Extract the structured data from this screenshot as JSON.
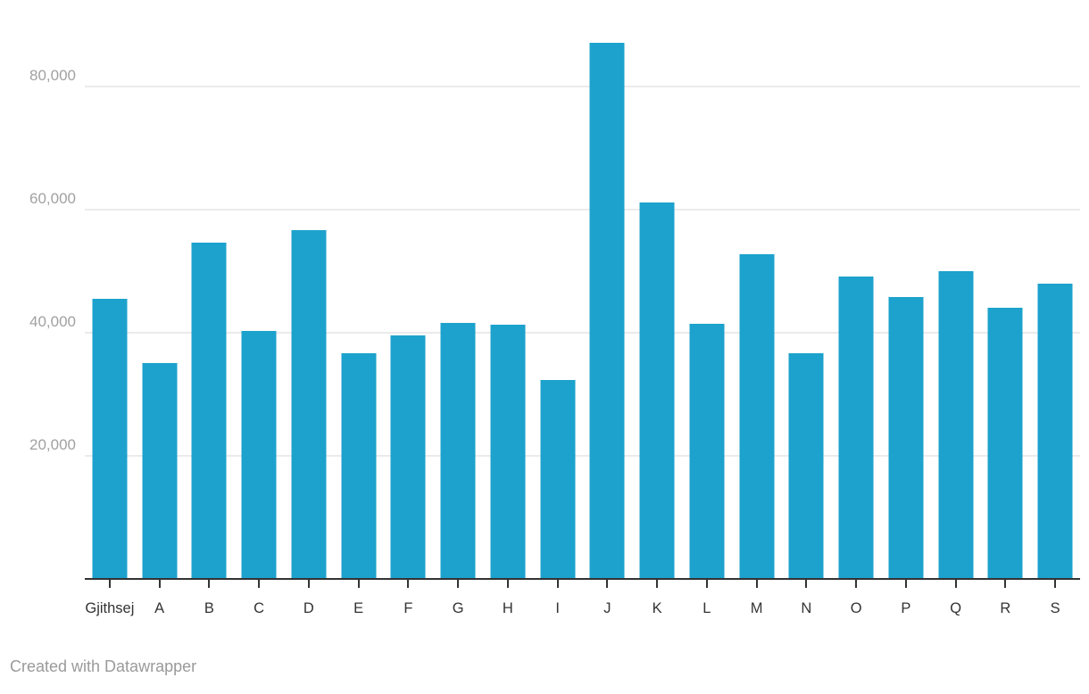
{
  "chart_data": {
    "type": "bar",
    "categories": [
      "Gjithsej",
      "A",
      "B",
      "C",
      "D",
      "E",
      "F",
      "G",
      "H",
      "I",
      "J",
      "K",
      "L",
      "M",
      "N",
      "O",
      "P",
      "Q",
      "R",
      "S"
    ],
    "values": [
      45500,
      35100,
      54600,
      40300,
      56700,
      36700,
      39600,
      41600,
      41300,
      32300,
      87100,
      61200,
      41400,
      52800,
      36700,
      49100,
      45800,
      50000,
      44100,
      48000
    ],
    "title": "",
    "xlabel": "",
    "ylabel": "",
    "ylim": [
      0,
      92000
    ],
    "yticks": [
      20000,
      40000,
      60000,
      80000
    ],
    "ytick_labels": [
      "20,000",
      "40,000",
      "60,000",
      "80,000"
    ],
    "grid": true,
    "legend_position": "none",
    "bar_color": "#1CA2CC"
  },
  "colors": {
    "bar": "#1CA2CC",
    "gridline": "#ebebeb",
    "axis_line": "#333333",
    "y_tick_label": "#a1a1a1",
    "x_tick_label": "#333333",
    "footer": "#9a9a9a",
    "background": "#ffffff"
  },
  "footer": {
    "credit": "Created with Datawrapper"
  }
}
